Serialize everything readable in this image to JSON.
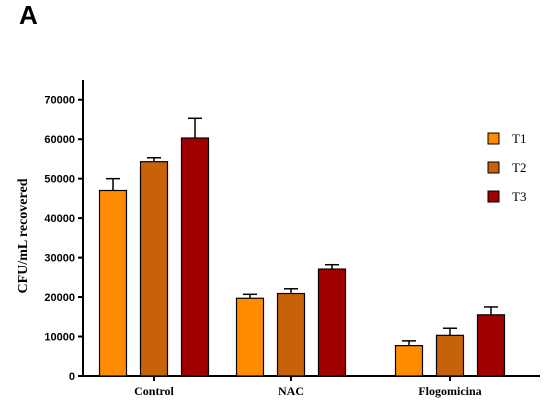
{
  "panel_label": "A",
  "chart_data": {
    "type": "bar",
    "title": "",
    "xlabel": "",
    "ylabel": "CFU/mL recovered",
    "categories": [
      "Control",
      "NAC",
      "Flogomicina"
    ],
    "ylim": [
      0,
      75000
    ],
    "yticks": [
      0,
      10000,
      20000,
      30000,
      40000,
      50000,
      60000,
      70000
    ],
    "error_bars": true,
    "legend_position": "top-right",
    "series": [
      {
        "name": "T1",
        "color": "#FF8C00",
        "values": [
          47000,
          19700,
          7700
        ],
        "errors": [
          3000,
          1000,
          1200
        ]
      },
      {
        "name": "T2",
        "color": "#C8620A",
        "values": [
          54300,
          20900,
          10300
        ],
        "errors": [
          1000,
          1200,
          1800
        ]
      },
      {
        "name": "T3",
        "color": "#A00000",
        "values": [
          60300,
          27100,
          15500
        ],
        "errors": [
          5000,
          1100,
          2000
        ]
      }
    ]
  }
}
